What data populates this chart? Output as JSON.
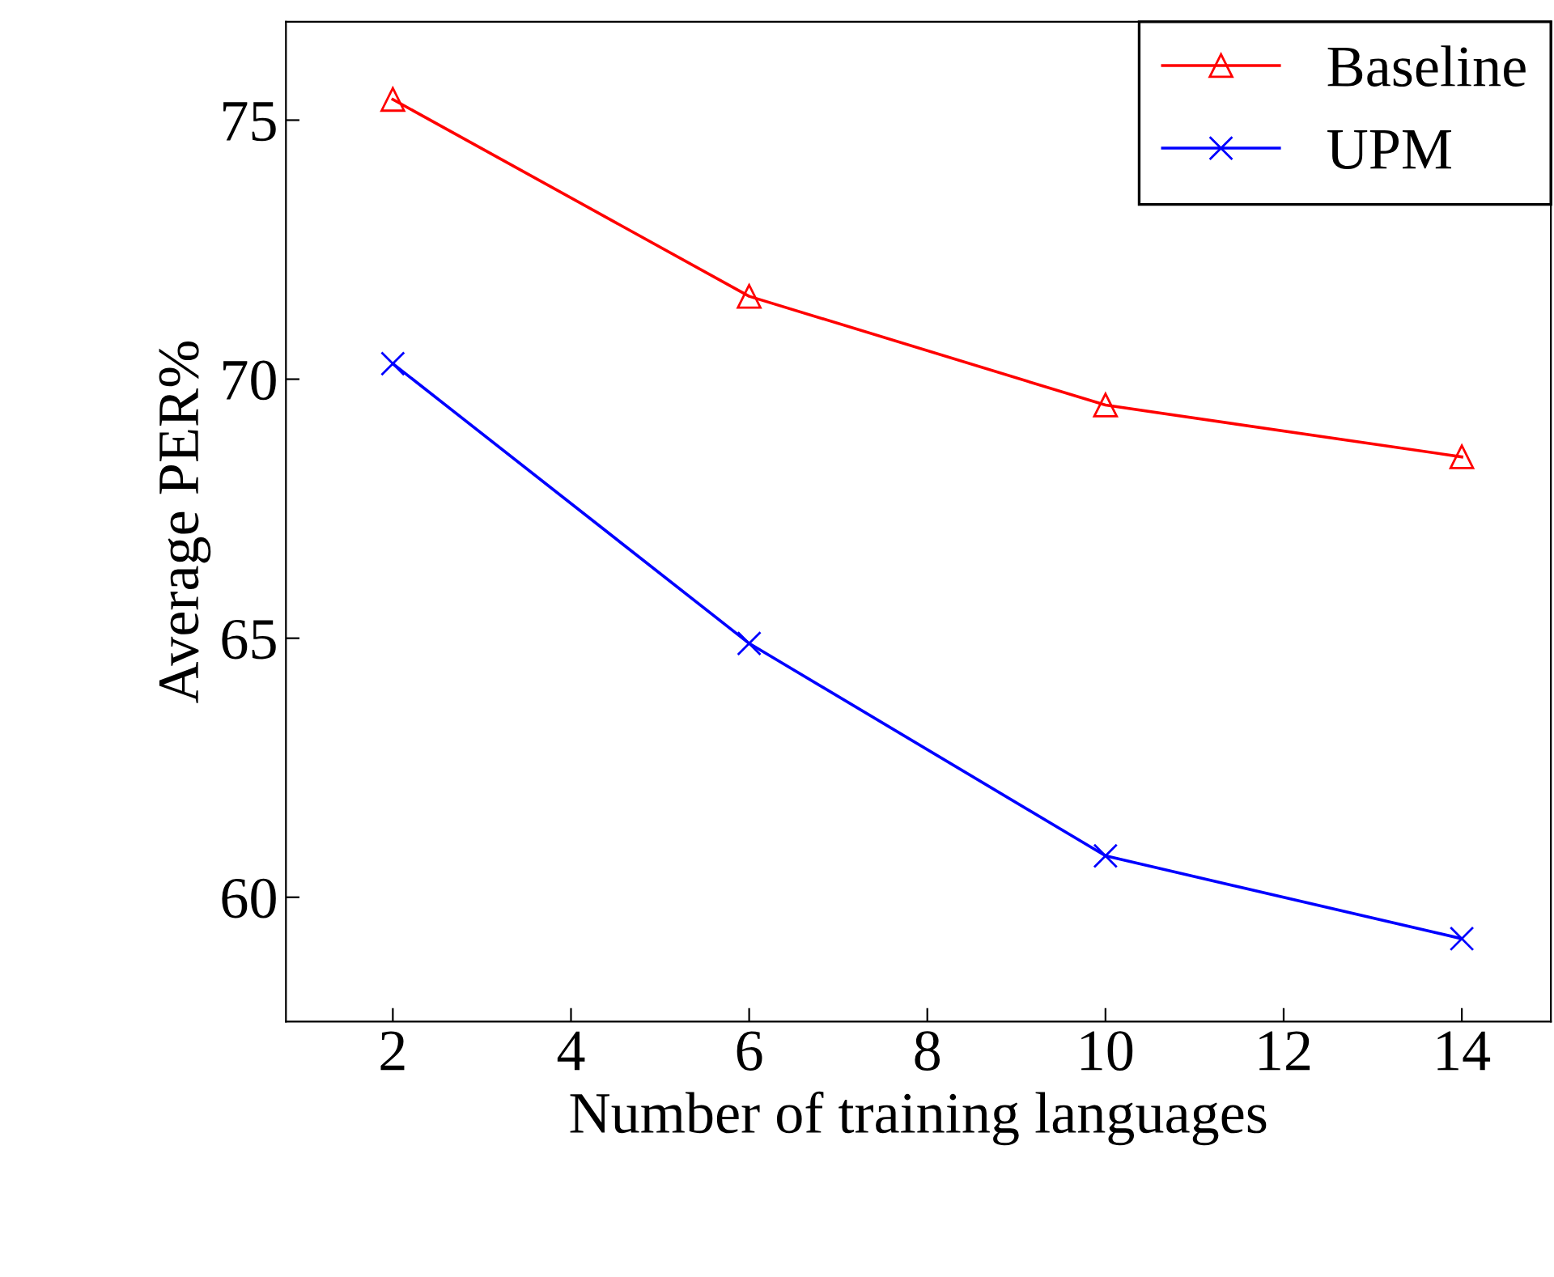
{
  "chart_data": {
    "type": "line",
    "xlabel": "Number of training languages",
    "ylabel": "Average PER%",
    "x": [
      2,
      6,
      10,
      14
    ],
    "series": [
      {
        "name": "Baseline",
        "color": "#ff0000",
        "marker": "triangle",
        "values": [
          75.4,
          71.6,
          69.5,
          68.5
        ]
      },
      {
        "name": "UPM",
        "color": "#0000ff",
        "marker": "cross",
        "values": [
          70.3,
          64.9,
          60.8,
          59.2
        ]
      }
    ],
    "xlim": [
      0.8,
      15
    ],
    "ylim": [
      57.6,
      76.9
    ],
    "xticks": [
      2,
      4,
      6,
      8,
      10,
      12,
      14
    ],
    "yticks": [
      60,
      65,
      70,
      75
    ],
    "grid": false,
    "legend": "top right",
    "line_style": "solid"
  }
}
